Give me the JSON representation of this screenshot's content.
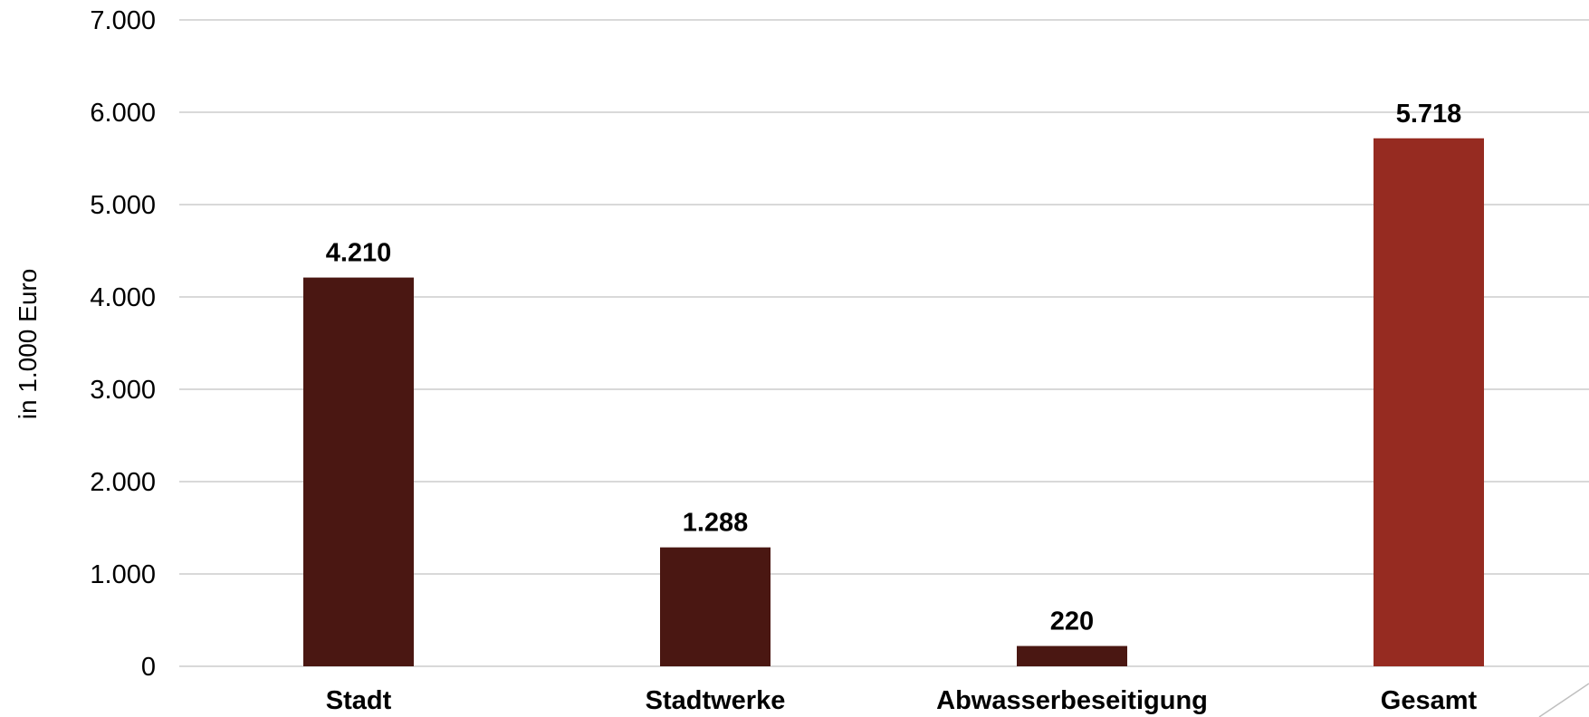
{
  "chart_data": {
    "type": "bar",
    "categories": [
      "Stadt",
      "Stadtwerke",
      "Abwasserbeseitigung",
      "Gesamt"
    ],
    "values": [
      4210,
      1288,
      220,
      5718
    ],
    "data_labels": [
      "4.210",
      "1.288",
      "220",
      "5.718"
    ],
    "bar_colors": [
      "#4a1712",
      "#4a1712",
      "#4a1712",
      "#962b21"
    ],
    "ylabel": "in 1.000 Euro",
    "xlabel": "",
    "title": "",
    "ylim": [
      0,
      7000
    ],
    "y_ticks": [
      0,
      1000,
      2000,
      3000,
      4000,
      5000,
      6000,
      7000
    ],
    "y_tick_labels": [
      "0",
      "1.000",
      "2.000",
      "3.000",
      "4.000",
      "5.000",
      "6.000",
      "7.000"
    ],
    "grid": true,
    "legend": "none"
  },
  "colors": {
    "grid": "#d9d9d9",
    "text": "#000000"
  }
}
